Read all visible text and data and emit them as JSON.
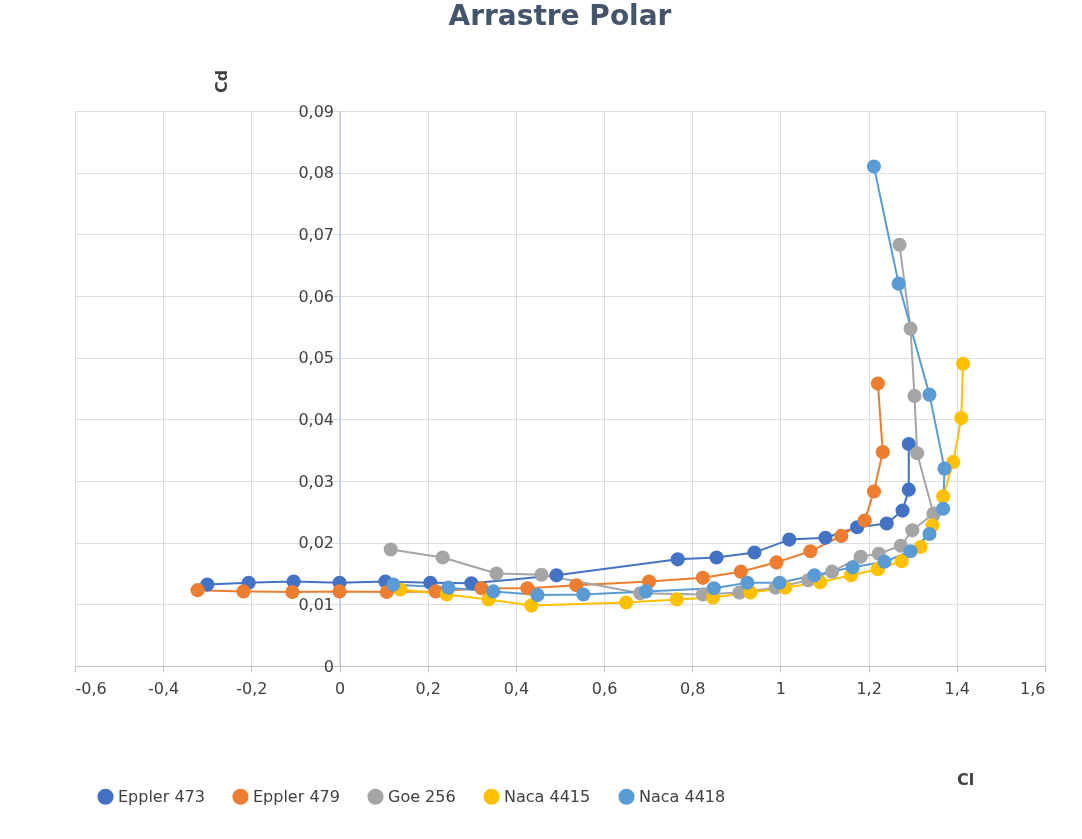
{
  "chart_data": {
    "type": "line",
    "title": "Arrastre Polar",
    "xlabel": "Cl",
    "ylabel": "Cd",
    "xlim": [
      -0.6,
      1.6
    ],
    "ylim": [
      0,
      0.09
    ],
    "xticks": [
      {
        "value": -0.6,
        "label": "-0,6"
      },
      {
        "value": -0.4,
        "label": "-0,4"
      },
      {
        "value": -0.2,
        "label": "-0,2"
      },
      0,
      {
        "value": 0.2,
        "label": "0,2"
      },
      {
        "value": 0.4,
        "label": "0,4"
      },
      {
        "value": 0.6,
        "label": "0,6"
      },
      {
        "value": 0.8,
        "label": "0,8"
      },
      1,
      {
        "value": 1.2,
        "label": "1,2"
      },
      {
        "value": 1.4,
        "label": "1,4"
      },
      {
        "value": 1.6,
        "label": "1,6"
      }
    ],
    "yticks": [
      0,
      {
        "value": 0.01,
        "label": "0,01"
      },
      {
        "value": 0.02,
        "label": "0,02"
      },
      {
        "value": 0.03,
        "label": "0,03"
      },
      {
        "value": 0.04,
        "label": "0,04"
      },
      {
        "value": 0.05,
        "label": "0,05"
      },
      {
        "value": 0.06,
        "label": "0,06"
      },
      {
        "value": 0.07,
        "label": "0,07"
      },
      {
        "value": 0.08,
        "label": "0,08"
      },
      {
        "value": 0.09,
        "label": "0,09"
      }
    ],
    "grid": true,
    "legend": "bottom",
    "marker": "circle",
    "line_style": "solid",
    "series": [
      {
        "name": "Eppler 473",
        "color": "#4472c4",
        "x": [
          -0.3,
          -0.206,
          -0.104,
          0,
          0.104,
          0.206,
          0.299,
          0.492,
          0.767,
          0.855,
          0.941,
          1.02,
          1.102,
          1.174,
          1.241,
          1.277,
          1.291,
          1.291
        ],
        "values": [
          0.0132,
          0.0135,
          0.0137,
          0.0135,
          0.0137,
          0.0135,
          0.0134,
          0.0147,
          0.0173,
          0.0176,
          0.0184,
          0.0205,
          0.0208,
          0.0225,
          0.0231,
          0.0252,
          0.0286,
          0.036
        ]
      },
      {
        "name": "Eppler 479",
        "color": "#ed7d31",
        "x": [
          -0.322,
          -0.218,
          -0.107,
          0,
          0.107,
          0.218,
          0.322,
          0.426,
          0.537,
          0.702,
          0.824,
          0.91,
          0.991,
          1.068,
          1.138,
          1.191,
          1.212,
          1.232,
          1.221
        ],
        "values": [
          0.0123,
          0.0121,
          0.012,
          0.0121,
          0.012,
          0.0121,
          0.0126,
          0.0126,
          0.0131,
          0.0137,
          0.0143,
          0.0153,
          0.0168,
          0.0186,
          0.0211,
          0.0236,
          0.0283,
          0.0347,
          0.0458
        ]
      },
      {
        "name": "Goe 256",
        "color": "#a5a5a5",
        "x": [
          0.116,
          0.234,
          0.356,
          0.458,
          0.682,
          0.824,
          0.907,
          0.989,
          1.063,
          1.117,
          1.182,
          1.223,
          1.273,
          1.299,
          1.347,
          1.31,
          1.304,
          1.295,
          1.27
        ],
        "values": [
          0.0189,
          0.0176,
          0.015,
          0.0148,
          0.0118,
          0.0116,
          0.0119,
          0.0127,
          0.0139,
          0.0153,
          0.0177,
          0.0182,
          0.0195,
          0.022,
          0.0247,
          0.0345,
          0.0438,
          0.0547,
          0.0683
        ]
      },
      {
        "name": "Naca 4415",
        "color": "#ffc000",
        "x": [
          0.138,
          0.243,
          0.338,
          0.435,
          0.65,
          0.765,
          0.847,
          0.932,
          1.011,
          1.09,
          1.16,
          1.221,
          1.275,
          1.318,
          1.345,
          1.369,
          1.392,
          1.41,
          1.414
        ],
        "values": [
          0.0124,
          0.0116,
          0.0108,
          0.0098,
          0.0103,
          0.0108,
          0.0111,
          0.0119,
          0.0127,
          0.0136,
          0.0147,
          0.0157,
          0.017,
          0.0193,
          0.0228,
          0.0275,
          0.0331,
          0.0402,
          0.049
        ]
      },
      {
        "name": "Naca 4418",
        "color": "#5b9bd5",
        "x": [
          0.122,
          0.247,
          0.349,
          0.449,
          0.553,
          0.695,
          0.849,
          0.925,
          0.998,
          1.077,
          1.164,
          1.236,
          1.295,
          1.338,
          1.369,
          1.372,
          1.338,
          1.268,
          1.212
        ],
        "values": [
          0.0132,
          0.0127,
          0.0121,
          0.0115,
          0.0116,
          0.0121,
          0.0126,
          0.0135,
          0.0135,
          0.0147,
          0.016,
          0.0169,
          0.0186,
          0.0214,
          0.0255,
          0.032,
          0.044,
          0.062,
          0.081
        ]
      }
    ]
  }
}
